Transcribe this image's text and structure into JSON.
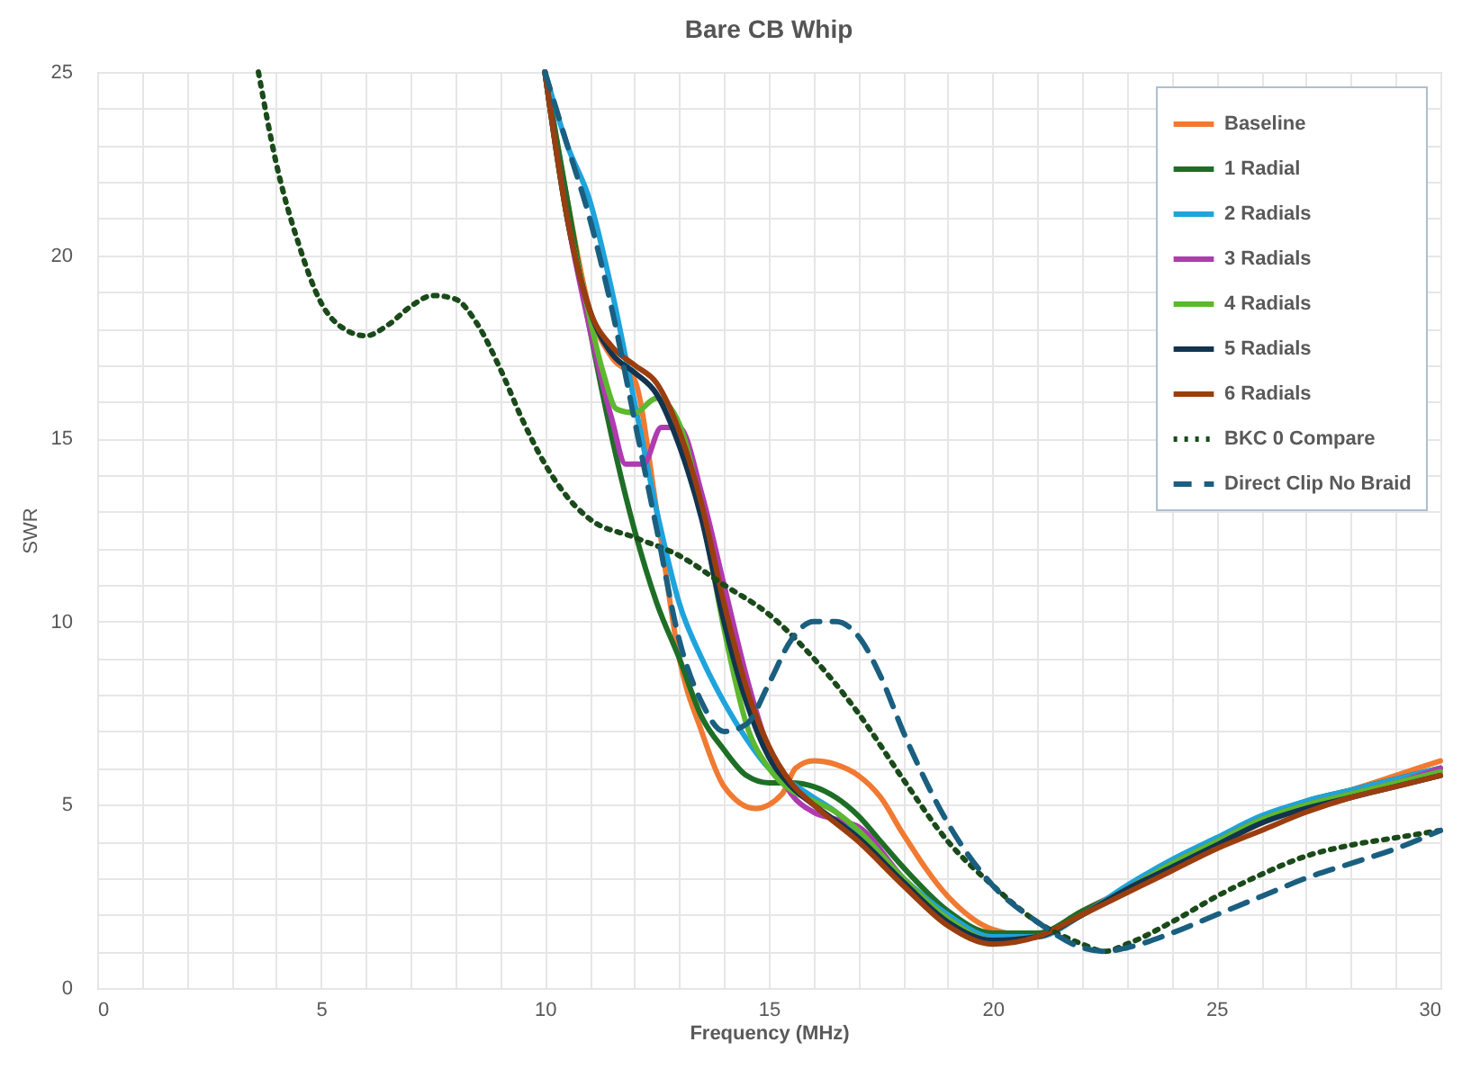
{
  "chart_data": {
    "type": "line",
    "title": "Bare CB Whip",
    "xlabel": "Frequency (MHz)",
    "ylabel": "SWR",
    "xlim": [
      0,
      30
    ],
    "ylim": [
      0,
      25
    ],
    "xticks": [
      0,
      {
        "value": 1,
        "label": null
      },
      {
        "value": 2,
        "label": null
      },
      {
        "value": 3,
        "label": null
      },
      {
        "value": 4,
        "label": null
      },
      5,
      {
        "value": 6,
        "label": null
      },
      {
        "value": 7,
        "label": null
      },
      {
        "value": 8,
        "label": null
      },
      {
        "value": 9,
        "label": null
      },
      10,
      {
        "value": 11,
        "label": null
      },
      {
        "value": 12,
        "label": null
      },
      {
        "value": 13,
        "label": null
      },
      {
        "value": 14,
        "label": null
      },
      15,
      {
        "value": 16,
        "label": null
      },
      {
        "value": 17,
        "label": null
      },
      {
        "value": 18,
        "label": null
      },
      {
        "value": 19,
        "label": null
      },
      20,
      {
        "value": 21,
        "label": null
      },
      {
        "value": 22,
        "label": null
      },
      {
        "value": 23,
        "label": null
      },
      {
        "value": 24,
        "label": null
      },
      25,
      {
        "value": 26,
        "label": null
      },
      {
        "value": 27,
        "label": null
      },
      {
        "value": 28,
        "label": null
      },
      {
        "value": 29,
        "label": null
      },
      30
    ],
    "yticks": [
      0,
      {
        "value": 1,
        "label": null
      },
      {
        "value": 2,
        "label": null
      },
      {
        "value": 3,
        "label": null
      },
      {
        "value": 4,
        "label": null
      },
      5,
      {
        "value": 6,
        "label": null
      },
      {
        "value": 7,
        "label": null
      },
      {
        "value": 8,
        "label": null
      },
      {
        "value": 9,
        "label": null
      },
      10,
      {
        "value": 11,
        "label": null
      },
      {
        "value": 12,
        "label": null
      },
      {
        "value": 13,
        "label": null
      },
      {
        "value": 14,
        "label": null
      },
      15,
      {
        "value": 16,
        "label": null
      },
      {
        "value": 17,
        "label": null
      },
      {
        "value": 18,
        "label": null
      },
      {
        "value": 19,
        "label": null
      },
      20,
      {
        "value": 21,
        "label": null
      },
      {
        "value": 22,
        "label": null
      },
      {
        "value": 23,
        "label": null
      },
      {
        "value": 24,
        "label": null
      },
      25
    ],
    "grid": true,
    "legend": "top right",
    "marker": "none",
    "series": [
      {
        "name": "Baseline",
        "color": "#f07a32",
        "line_style": "solid",
        "x": [
          10,
          10.5,
          11,
          11.5,
          12,
          12.5,
          13,
          13.5,
          14,
          14.7,
          15.3,
          15.6,
          16,
          16.5,
          17,
          17.5,
          18,
          19,
          20,
          21,
          22,
          23,
          24,
          25,
          26,
          27,
          28,
          29,
          30
        ],
        "values": [
          25,
          21.5,
          18.5,
          17.2,
          16.6,
          13,
          9,
          7,
          5.5,
          4.9,
          5.3,
          6,
          6.2,
          6.1,
          5.8,
          5.2,
          4.2,
          2.5,
          1.6,
          1.4,
          2.1,
          2.7,
          3.3,
          3.9,
          4.5,
          5,
          5.4,
          5.8,
          6.2
        ]
      },
      {
        "name": "1 Radial",
        "color": "#1e6e26",
        "line_style": "solid",
        "x": [
          10,
          10.5,
          11,
          11.5,
          12,
          12.5,
          13,
          13.5,
          14,
          14.5,
          15,
          15.5,
          16,
          16.5,
          17,
          17.5,
          18,
          19,
          20,
          21,
          22,
          23,
          24,
          25,
          26,
          27,
          28,
          29,
          30
        ],
        "values": [
          25,
          21.5,
          18,
          15,
          12.5,
          10.5,
          9,
          7.4,
          6.5,
          5.8,
          5.6,
          5.6,
          5.5,
          5.2,
          4.7,
          4,
          3.3,
          2.1,
          1.5,
          1.5,
          2.1,
          2.7,
          3.4,
          4,
          4.6,
          5.1,
          5.4,
          5.7,
          6
        ]
      },
      {
        "name": "2 Radials",
        "color": "#1fa3dc",
        "line_style": "solid",
        "x": [
          10,
          10.5,
          11,
          11.5,
          12,
          12.5,
          13,
          13.5,
          14,
          14.5,
          15,
          15.5,
          16,
          16.5,
          17,
          18,
          19,
          20,
          21,
          22,
          23,
          24,
          25,
          26,
          27,
          28,
          29,
          30
        ],
        "values": [
          25,
          23,
          21.5,
          19,
          16,
          13,
          10.5,
          9,
          7.8,
          6.8,
          6,
          5.6,
          5.2,
          4.8,
          4.2,
          3,
          2,
          1.4,
          1.4,
          2,
          2.8,
          3.5,
          4.1,
          4.7,
          5.1,
          5.4,
          5.7,
          6
        ]
      },
      {
        "name": "3 Radials",
        "color": "#b03ab0",
        "line_style": "solid",
        "x": [
          10,
          10.5,
          11,
          11.5,
          11.8,
          12.2,
          12.6,
          13,
          13.5,
          14,
          14.5,
          15,
          15.5,
          16,
          16.5,
          17,
          18,
          19,
          20,
          21,
          22,
          23,
          24,
          25,
          26,
          27,
          28,
          29,
          30
        ],
        "values": [
          25,
          21,
          18,
          15.5,
          14.3,
          14.3,
          15.3,
          15.3,
          13.5,
          11,
          8.5,
          6.5,
          5.3,
          4.8,
          4.6,
          4.4,
          3,
          1.9,
          1.3,
          1.4,
          2,
          2.7,
          3.4,
          4,
          4.6,
          5,
          5.3,
          5.6,
          6
        ]
      },
      {
        "name": "4 Radials",
        "color": "#5cb82e",
        "line_style": "solid",
        "x": [
          10,
          10.5,
          10.8,
          11.3,
          11.6,
          12,
          12.5,
          13,
          13.5,
          14,
          14.5,
          15,
          15.5,
          16,
          16.5,
          17,
          18,
          19,
          20,
          21,
          22,
          23,
          24,
          25,
          26,
          27,
          28,
          29,
          30
        ],
        "values": [
          25,
          21,
          19.4,
          16.8,
          15.8,
          15.7,
          16.1,
          15.4,
          13,
          9.8,
          7.2,
          6,
          5.4,
          5.1,
          4.8,
          4.3,
          3,
          1.9,
          1.3,
          1.4,
          2,
          2.7,
          3.4,
          4,
          4.6,
          5,
          5.3,
          5.6,
          5.9
        ]
      },
      {
        "name": "5 Radials",
        "color": "#12344f",
        "line_style": "solid",
        "x": [
          10,
          10.5,
          11,
          11.5,
          12,
          12.5,
          13,
          13.5,
          14,
          14.5,
          15,
          15.5,
          16,
          17,
          18,
          19,
          20,
          21,
          22,
          23,
          24,
          25,
          26,
          27,
          28,
          29,
          30
        ],
        "values": [
          25,
          21,
          18.5,
          17.3,
          16.8,
          16.2,
          14.8,
          12.8,
          10,
          7.8,
          6.3,
          5.5,
          5,
          4.1,
          2.9,
          1.8,
          1.3,
          1.4,
          2,
          2.7,
          3.3,
          3.9,
          4.5,
          4.9,
          5.2,
          5.5,
          5.8
        ]
      },
      {
        "name": "6 Radials",
        "color": "#9a3e10",
        "line_style": "solid",
        "x": [
          10,
          10.5,
          11,
          11.5,
          12,
          12.5,
          13,
          13.5,
          14,
          14.5,
          15,
          15.5,
          16,
          17,
          18,
          19,
          20,
          21,
          22,
          23,
          24,
          25,
          26,
          27,
          28,
          29,
          30
        ],
        "values": [
          25,
          21,
          18.5,
          17.5,
          17,
          16.5,
          15.2,
          13.2,
          10.5,
          8.2,
          6.6,
          5.6,
          5,
          4,
          2.8,
          1.7,
          1.2,
          1.4,
          2,
          2.6,
          3.2,
          3.8,
          4.3,
          4.8,
          5.2,
          5.5,
          5.8
        ]
      },
      {
        "name": "BKC 0 Compare",
        "color": "#1a4a1a",
        "line_style": "dotted",
        "x": [
          3.6,
          4,
          4.5,
          5,
          5.5,
          6,
          6.5,
          7,
          7.5,
          8,
          8.5,
          9,
          9.5,
          10,
          10.5,
          11,
          12,
          13,
          14,
          15,
          16,
          17,
          18,
          19,
          20,
          21,
          22,
          22.5,
          23,
          24,
          25,
          26,
          27,
          28,
          29,
          30
        ],
        "values": [
          25,
          22.5,
          20.3,
          18.7,
          18,
          17.8,
          18.1,
          18.6,
          18.9,
          18.8,
          18.1,
          16.9,
          15.5,
          14.3,
          13.4,
          12.8,
          12.3,
          11.8,
          11,
          10.2,
          9,
          7.5,
          5.7,
          4,
          2.8,
          1.8,
          1.2,
          1,
          1.2,
          1.8,
          2.5,
          3.1,
          3.6,
          3.9,
          4.1,
          4.3
        ]
      },
      {
        "name": "Direct Clip No Braid",
        "color": "#1a5f80",
        "line_style": "dashed",
        "x": [
          10,
          10.5,
          11,
          11.5,
          12,
          12.5,
          13,
          13.5,
          14,
          14.5,
          15,
          15.5,
          16,
          16.5,
          17,
          17.5,
          18,
          19,
          20,
          21,
          22,
          22.5,
          23,
          24,
          25,
          26,
          27,
          28,
          29,
          30
        ],
        "values": [
          25,
          23,
          21,
          18.5,
          15.5,
          12.5,
          9.5,
          7.8,
          7,
          7.2,
          8.3,
          9.5,
          10,
          10,
          9.6,
          8.5,
          7,
          4.5,
          2.8,
          1.8,
          1.1,
          1,
          1.1,
          1.5,
          2,
          2.5,
          3,
          3.4,
          3.8,
          4.3
        ]
      }
    ]
  }
}
